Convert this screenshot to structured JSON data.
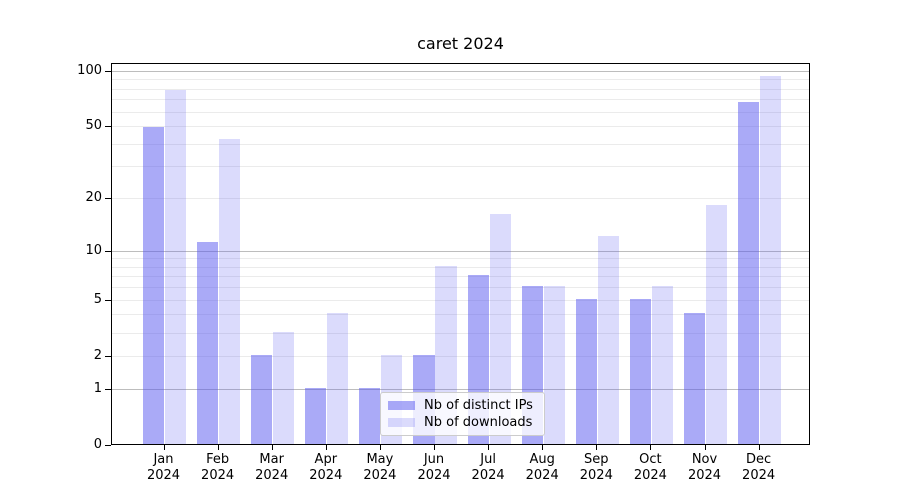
{
  "figure": {
    "title": "caret 2024"
  },
  "chart_data": {
    "type": "bar",
    "title": "caret 2024",
    "categories": [
      "Jan 2024",
      "Feb 2024",
      "Mar 2024",
      "Apr 2024",
      "May 2024",
      "Jun 2024",
      "Jul 2024",
      "Aug 2024",
      "Sep 2024",
      "Oct 2024",
      "Nov 2024",
      "Dec 2024"
    ],
    "series": [
      {
        "name": "Nb of distinct IPs",
        "color": "#5555F0",
        "alpha": 0.5,
        "rgba": "rgba(85,85,240,0.5)",
        "values": [
          49,
          11,
          2,
          1,
          1,
          2,
          7,
          6,
          5,
          5,
          4,
          67
        ]
      },
      {
        "name": "Nb of downloads",
        "color": "#5555F0",
        "alpha": 0.21,
        "rgba": "rgba(85,85,240,0.21)",
        "values": [
          78,
          42,
          3,
          4,
          2,
          8,
          16,
          6,
          12,
          6,
          18,
          92
        ]
      }
    ],
    "xlabel": "",
    "ylabel": "",
    "yscale": "log1p",
    "ylim": [
      0,
      110
    ],
    "y_ticks": [
      0,
      1,
      2,
      5,
      10,
      20,
      50,
      100
    ],
    "y_minor_gridlines": [
      2,
      3,
      4,
      5,
      6,
      7,
      8,
      9,
      20,
      30,
      40,
      50,
      60,
      70,
      80,
      90
    ],
    "y_major_gridlines": [
      1,
      10,
      100
    ],
    "grid": true,
    "legend": {
      "position": "lower center",
      "items": [
        "Nb of distinct IPs",
        "Nb of downloads"
      ]
    },
    "colors": {
      "minor_grid": "#ebebeb",
      "major_grid": "#bdbdbd",
      "spine": "#000000",
      "text": "#000000"
    }
  }
}
